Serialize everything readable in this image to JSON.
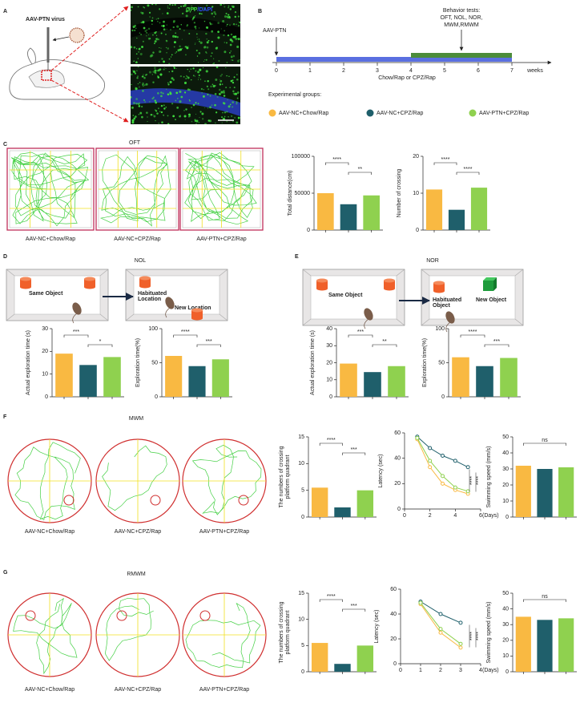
{
  "panel_letters": [
    "A",
    "B",
    "C",
    "D",
    "E",
    "F",
    "G"
  ],
  "panel_a": {
    "virus": "AAV-PTN virus",
    "gfp": "GFP",
    "dapi": "/DAPI"
  },
  "panel_b": {
    "injection": "AAV-PTN",
    "tests_title": "Behavior tests:",
    "tests_line1": "OFT, NOL, NOR,",
    "tests_line2": "MWM,RMWM",
    "diet": "Chow/Rap or CPZ/Rap",
    "unit": "weeks",
    "ticks": [
      0,
      1,
      2,
      3,
      4,
      5,
      6,
      7
    ],
    "diet_period": [
      0,
      7
    ],
    "test_period": [
      4,
      7
    ],
    "groups_title": "Experimental groups:",
    "groups": [
      {
        "name": "AAV-NC+Chow/Rap",
        "color": "#f9b942"
      },
      {
        "name": "AAV-NC+CPZ/Rap",
        "color": "#1f5f6b"
      },
      {
        "name": "AAV-PTN+CPZ/Rap",
        "color": "#8fd14f"
      }
    ]
  },
  "panel_c": {
    "title": "OFT",
    "tracks": [
      "AAV-NC+Chow/Rap",
      "AAV-NC+CPZ/Rap",
      "AAV-PTN+CPZ/Rap"
    ]
  },
  "panel_d": {
    "title": "NOL",
    "same": "Same Object",
    "habituated": [
      "Habituated",
      "Location"
    ],
    "new": "New Location"
  },
  "panel_e": {
    "title": "NOR",
    "same": "Same Object",
    "habituated": [
      "Habituated",
      "Object"
    ],
    "new": "New Object"
  },
  "panel_f": {
    "title": "MWM",
    "tracks": [
      "AAV-NC+Chow/Rap",
      "AAV-NC+CPZ/Rap",
      "AAV-PTN+CPZ/Rap"
    ]
  },
  "panel_g": {
    "title": "RMWM",
    "tracks": [
      "AAV-NC+Chow/Rap",
      "AAV-NC+CPZ/Rap",
      "AAV-PTN+CPZ/Rap"
    ]
  },
  "chart_data": [
    {
      "type": "bar",
      "ylabel": [
        "Total distance(cm)"
      ],
      "ylim": [
        0,
        100000
      ],
      "yticks": [
        0,
        50000,
        100000
      ],
      "values": [
        50000,
        35000,
        47000
      ],
      "colors": [
        "#f9b942",
        "#1f5f6b",
        "#8fd14f"
      ],
      "annotations": [
        "****",
        "**"
      ]
    },
    {
      "type": "bar",
      "ylabel": [
        "Number of crossing"
      ],
      "ylim": [
        0,
        20
      ],
      "yticks": [
        0,
        10,
        20
      ],
      "values": [
        11,
        5.5,
        11.5
      ],
      "colors": [
        "#f9b942",
        "#1f5f6b",
        "#8fd14f"
      ],
      "annotations": [
        "****",
        "****"
      ]
    },
    {
      "type": "bar",
      "ylabel": [
        "Actual exploration time (s)"
      ],
      "ylim": [
        0,
        30
      ],
      "yticks": [
        0,
        10,
        20,
        30
      ],
      "values": [
        19,
        14,
        17.5
      ],
      "colors": [
        "#f9b942",
        "#1f5f6b",
        "#8fd14f"
      ],
      "annotations": [
        "***",
        "*"
      ]
    },
    {
      "type": "bar",
      "ylabel": [
        "Exploration time(%)"
      ],
      "ylim": [
        0,
        100
      ],
      "yticks": [
        0,
        50,
        100
      ],
      "values": [
        60,
        45,
        55
      ],
      "colors": [
        "#f9b942",
        "#1f5f6b",
        "#8fd14f"
      ],
      "annotations": [
        "****",
        "***"
      ]
    },
    {
      "type": "bar",
      "ylabel": [
        "Actual exploration time (s)"
      ],
      "ylim": [
        0,
        40
      ],
      "yticks": [
        0,
        10,
        20,
        30,
        40
      ],
      "values": [
        19.5,
        14.5,
        18
      ],
      "colors": [
        "#f9b942",
        "#1f5f6b",
        "#8fd14f"
      ],
      "annotations": [
        "***",
        "**"
      ]
    },
    {
      "type": "bar",
      "ylabel": [
        "Exploration time(%)"
      ],
      "ylim": [
        0,
        100
      ],
      "yticks": [
        0,
        50,
        100
      ],
      "values": [
        58,
        45,
        57
      ],
      "colors": [
        "#f9b942",
        "#1f5f6b",
        "#8fd14f"
      ],
      "annotations": [
        "****",
        "***"
      ]
    },
    {
      "type": "bar",
      "ylabel": [
        "The numbers of crossing",
        "platform quadrant"
      ],
      "ylim": [
        0,
        15
      ],
      "yticks": [
        0,
        5,
        10,
        15
      ],
      "values": [
        5.5,
        1.8,
        5
      ],
      "colors": [
        "#f9b942",
        "#1f5f6b",
        "#8fd14f"
      ],
      "annotations": [
        "****",
        "***"
      ]
    },
    {
      "type": "line",
      "ylabel": [
        "Latency (sec)"
      ],
      "xlabel": "(Days)",
      "x": [
        1,
        2,
        3,
        4,
        5
      ],
      "xlim": [
        0,
        6
      ],
      "xticks": [
        0,
        2,
        4,
        6
      ],
      "ylim": [
        0,
        60
      ],
      "yticks": [
        0,
        20,
        40,
        60
      ],
      "series": [
        {
          "color": "#f9b942",
          "values": [
            55,
            33,
            20,
            15,
            12
          ]
        },
        {
          "color": "#1f5f6b",
          "values": [
            57,
            48,
            42,
            38,
            33
          ]
        },
        {
          "color": "#8fd14f",
          "values": [
            56,
            38,
            26,
            17,
            14
          ]
        }
      ],
      "annotations": [
        "****",
        "****"
      ]
    },
    {
      "type": "bar",
      "ylabel": [
        "Swimming speed (mm/s)"
      ],
      "ylim": [
        0,
        50
      ],
      "yticks": [
        0,
        10,
        20,
        30,
        40,
        50
      ],
      "values": [
        32,
        30,
        31
      ],
      "colors": [
        "#f9b942",
        "#1f5f6b",
        "#8fd14f"
      ],
      "annotations": [
        "ns"
      ]
    },
    {
      "type": "bar",
      "ylabel": [
        "The numbers of crossing",
        "platform quadrant"
      ],
      "ylim": [
        0,
        15
      ],
      "yticks": [
        0,
        5,
        10,
        15
      ],
      "values": [
        5.5,
        1.5,
        5
      ],
      "colors": [
        "#f9b942",
        "#1f5f6b",
        "#8fd14f"
      ],
      "annotations": [
        "****",
        "***"
      ]
    },
    {
      "type": "line",
      "ylabel": [
        "Latency (sec)"
      ],
      "xlabel": "(Days)",
      "x": [
        1,
        2,
        3
      ],
      "xlim": [
        0,
        4
      ],
      "xticks": [
        0,
        1,
        2,
        3,
        4
      ],
      "ylim": [
        0,
        60
      ],
      "yticks": [
        0,
        20,
        40,
        60
      ],
      "series": [
        {
          "color": "#f9b942",
          "values": [
            48,
            25,
            13
          ]
        },
        {
          "color": "#1f5f6b",
          "values": [
            50,
            40,
            33
          ]
        },
        {
          "color": "#8fd14f",
          "values": [
            49,
            28,
            16
          ]
        }
      ],
      "annotations": [
        "****",
        "****"
      ]
    },
    {
      "type": "bar",
      "ylabel": [
        "Swimming speed (mm/s)"
      ],
      "ylim": [
        0,
        50
      ],
      "yticks": [
        0,
        10,
        20,
        30,
        40,
        50
      ],
      "values": [
        35,
        33,
        34
      ],
      "colors": [
        "#f9b942",
        "#1f5f6b",
        "#8fd14f"
      ],
      "annotations": [
        "ns"
      ]
    }
  ]
}
